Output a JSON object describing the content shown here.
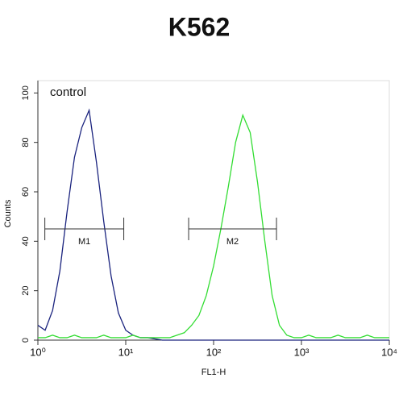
{
  "chart_data": {
    "type": "line",
    "title": "K562",
    "xlabel": "FL1-H",
    "ylabel": "Counts",
    "xscale": "log",
    "xlim": [
      1,
      10000
    ],
    "xticks": [
      {
        "value": 1,
        "label": "10⁰"
      },
      {
        "value": 10,
        "label": "10¹"
      },
      {
        "value": 100,
        "label": "10²"
      },
      {
        "value": 1000,
        "label": "10³"
      },
      {
        "value": 10000,
        "label": "10⁴"
      }
    ],
    "ylim": [
      0,
      105
    ],
    "yticks": [
      0,
      20,
      40,
      60,
      80,
      100
    ],
    "x": [
      1,
      1.21,
      1.47,
      1.78,
      2.15,
      2.61,
      3.16,
      3.83,
      4.64,
      5.62,
      6.81,
      8.25,
      10,
      12.1,
      14.7,
      17.8,
      21.5,
      26.1,
      31.6,
      38.3,
      46.4,
      56.2,
      68.1,
      82.5,
      100,
      121,
      147,
      178,
      215,
      261,
      316,
      383,
      464,
      562,
      681,
      825,
      1000,
      1210,
      1470,
      1780,
      2150,
      2610,
      3160,
      3830,
      4640,
      5620,
      6810,
      8250,
      10000
    ],
    "series": [
      {
        "name": "control",
        "color": "#1a237e",
        "values": [
          6,
          4,
          12,
          28,
          52,
          74,
          86,
          93,
          72,
          48,
          26,
          11,
          4,
          2,
          1,
          1,
          0.5,
          0,
          0,
          0,
          0,
          0,
          0,
          0,
          0,
          0,
          0,
          0,
          0,
          0,
          0,
          0,
          0,
          0,
          0,
          0,
          0,
          0,
          0,
          0,
          0,
          0,
          0,
          0,
          0,
          0,
          0,
          0,
          0
        ]
      },
      {
        "color": "#33dd33",
        "values": [
          1,
          1,
          2,
          1,
          1,
          2,
          1,
          1,
          1,
          2,
          1,
          1,
          1,
          2,
          1,
          1,
          1,
          1,
          1,
          2,
          3,
          6,
          10,
          18,
          30,
          45,
          62,
          80,
          91,
          84,
          64,
          40,
          18,
          6,
          2,
          1,
          1,
          2,
          1,
          1,
          1,
          2,
          1,
          1,
          1,
          2,
          1,
          1,
          1
        ]
      }
    ],
    "markers": [
      {
        "label": "M1",
        "range": [
          1.2,
          9.5
        ],
        "y": 45
      },
      {
        "label": "M2",
        "range": [
          52,
          520
        ],
        "y": 45
      }
    ]
  }
}
